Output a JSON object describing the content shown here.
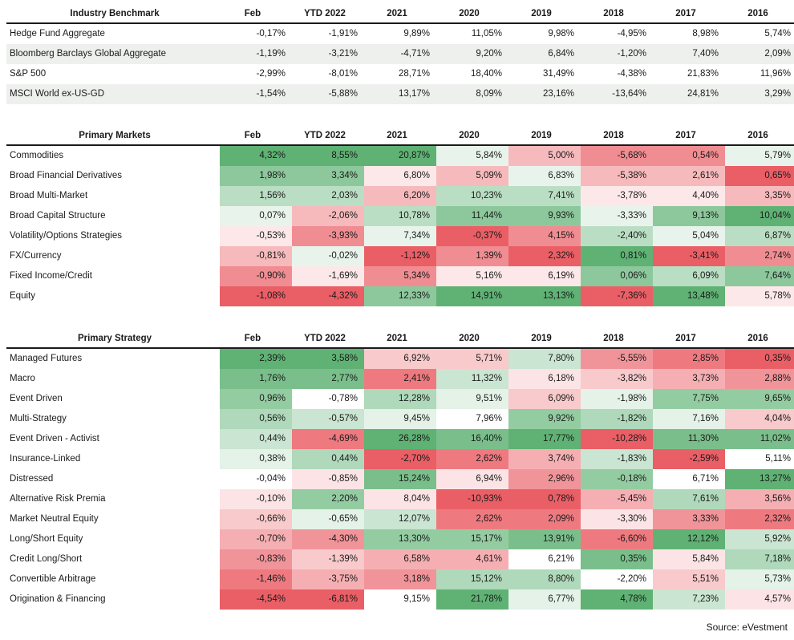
{
  "columns": [
    "Feb",
    "YTD 2022",
    "2021",
    "2020",
    "2019",
    "2018",
    "2017",
    "2016"
  ],
  "source": "Source: eVestment",
  "chart_data": {
    "type": "table",
    "tables": [
      {
        "title": "Industry Benchmark",
        "rows": [
          {
            "name": "Hedge Fund Aggregate",
            "values": [
              "-0,17%",
              "-1,91%",
              "9,89%",
              "11,05%",
              "9,98%",
              "-4,95%",
              "8,98%",
              "5,74%"
            ]
          },
          {
            "name": "Bloomberg Barclays Global Aggregate",
            "values": [
              "-1,19%",
              "-3,21%",
              "-4,71%",
              "9,20%",
              "6,84%",
              "-1,20%",
              "7,40%",
              "2,09%"
            ]
          },
          {
            "name": "S&P 500",
            "values": [
              "-2,99%",
              "-8,01%",
              "28,71%",
              "18,40%",
              "31,49%",
              "-4,38%",
              "21,83%",
              "11,96%"
            ]
          },
          {
            "name": "MSCI World ex-US-GD",
            "values": [
              "-1,54%",
              "-5,88%",
              "13,17%",
              "8,09%",
              "23,16%",
              "-13,64%",
              "24,81%",
              "3,29%"
            ]
          }
        ]
      },
      {
        "title": "Primary Markets",
        "rows": [
          {
            "name": "Commodities",
            "values": [
              "4,32%",
              "8,55%",
              "20,87%",
              "5,84%",
              "5,00%",
              "-5,68%",
              "0,54%",
              "5,79%"
            ]
          },
          {
            "name": "Broad Financial Derivatives",
            "values": [
              "1,98%",
              "3,34%",
              "6,80%",
              "5,09%",
              "6,83%",
              "-5,38%",
              "2,61%",
              "0,65%"
            ]
          },
          {
            "name": "Broad Multi-Market",
            "values": [
              "1,56%",
              "2,03%",
              "6,20%",
              "10,23%",
              "7,41%",
              "-3,78%",
              "4,40%",
              "3,35%"
            ]
          },
          {
            "name": "Broad Capital Structure",
            "values": [
              "0,07%",
              "-2,06%",
              "10,78%",
              "11,44%",
              "9,93%",
              "-3,33%",
              "9,13%",
              "10,04%"
            ]
          },
          {
            "name": "Volatility/Options Strategies",
            "values": [
              "-0,53%",
              "-3,93%",
              "7,34%",
              "-0,37%",
              "4,15%",
              "-2,40%",
              "5,04%",
              "6,87%"
            ]
          },
          {
            "name": "FX/Currency",
            "values": [
              "-0,81%",
              "-0,02%",
              "-1,12%",
              "1,39%",
              "2,32%",
              "0,81%",
              "-3,41%",
              "2,74%"
            ]
          },
          {
            "name": "Fixed Income/Credit",
            "values": [
              "-0,90%",
              "-1,69%",
              "5,34%",
              "5,16%",
              "6,19%",
              "0,06%",
              "6,09%",
              "7,64%"
            ]
          },
          {
            "name": "Equity",
            "values": [
              "-1,08%",
              "-4,32%",
              "12,33%",
              "14,91%",
              "13,13%",
              "-7,36%",
              "13,48%",
              "5,78%"
            ]
          }
        ]
      },
      {
        "title": "Primary Strategy",
        "rows": [
          {
            "name": "Managed Futures",
            "values": [
              "2,39%",
              "3,58%",
              "6,92%",
              "5,71%",
              "7,80%",
              "-5,55%",
              "2,85%",
              "0,35%"
            ]
          },
          {
            "name": "Macro",
            "values": [
              "1,76%",
              "2,77%",
              "2,41%",
              "11,32%",
              "6,18%",
              "-3,82%",
              "3,73%",
              "2,88%"
            ]
          },
          {
            "name": "Event Driven",
            "values": [
              "0,96%",
              "-0,78%",
              "12,28%",
              "9,51%",
              "6,09%",
              "-1,98%",
              "7,75%",
              "9,65%"
            ]
          },
          {
            "name": "Multi-Strategy",
            "values": [
              "0,56%",
              "-0,57%",
              "9,45%",
              "7,96%",
              "9,92%",
              "-1,82%",
              "7,16%",
              "4,04%"
            ]
          },
          {
            "name": "Event Driven - Activist",
            "values": [
              "0,44%",
              "-4,69%",
              "26,28%",
              "16,40%",
              "17,77%",
              "-10,28%",
              "11,30%",
              "11,02%"
            ]
          },
          {
            "name": "Insurance-Linked",
            "values": [
              "0,38%",
              "0,44%",
              "-2,70%",
              "2,62%",
              "3,74%",
              "-1,83%",
              "-2,59%",
              "5,11%"
            ]
          },
          {
            "name": "Distressed",
            "values": [
              "-0,04%",
              "-0,85%",
              "15,24%",
              "6,94%",
              "2,96%",
              "-0,18%",
              "6,71%",
              "13,27%"
            ]
          },
          {
            "name": "Alternative Risk Premia",
            "values": [
              "-0,10%",
              "2,20%",
              "8,04%",
              "-10,93%",
              "0,78%",
              "-5,45%",
              "7,61%",
              "3,56%"
            ]
          },
          {
            "name": "Market Neutral Equity",
            "values": [
              "-0,66%",
              "-0,65%",
              "12,07%",
              "2,62%",
              "2,09%",
              "-3,30%",
              "3,33%",
              "2,32%"
            ]
          },
          {
            "name": "Long/Short Equity",
            "values": [
              "-0,70%",
              "-4,30%",
              "13,30%",
              "15,17%",
              "13,91%",
              "-6,60%",
              "12,12%",
              "5,92%"
            ]
          },
          {
            "name": "Credit Long/Short",
            "values": [
              "-0,83%",
              "-1,39%",
              "6,58%",
              "4,61%",
              "6,21%",
              "0,35%",
              "5,84%",
              "7,18%"
            ]
          },
          {
            "name": "Convertible Arbitrage",
            "values": [
              "-1,46%",
              "-3,75%",
              "3,18%",
              "15,12%",
              "8,80%",
              "-2,20%",
              "5,51%",
              "5,73%"
            ]
          },
          {
            "name": "Origination & Financing",
            "values": [
              "-4,54%",
              "-6,81%",
              "9,15%",
              "21,78%",
              "6,77%",
              "4,78%",
              "7,23%",
              "4,57%"
            ]
          }
        ]
      }
    ]
  }
}
